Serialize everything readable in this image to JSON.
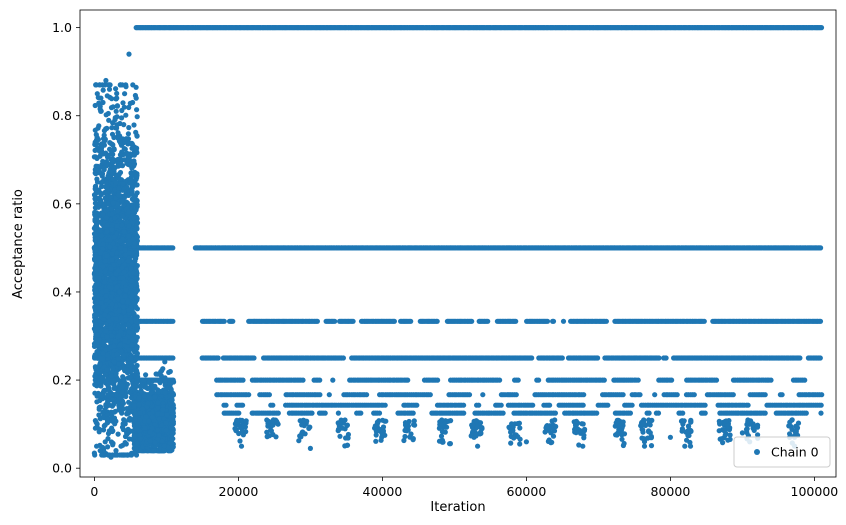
{
  "chart_data": {
    "type": "scatter",
    "xlabel": "Iteration",
    "ylabel": "Acceptance ratio",
    "xlim": [
      -2000,
      103000
    ],
    "ylim": [
      -0.02,
      1.04
    ],
    "xticks": [
      0,
      20000,
      40000,
      60000,
      80000,
      100000
    ],
    "xtick_labels": [
      "0",
      "20000",
      "40000",
      "60000",
      "80000",
      "100000"
    ],
    "yticks": [
      0.0,
      0.2,
      0.4,
      0.6,
      0.8,
      1.0
    ],
    "ytick_labels": [
      "0.0",
      "0.2",
      "0.4",
      "0.6",
      "0.8",
      "1.0"
    ],
    "grid": false,
    "legend": {
      "placement": "bottom-right",
      "entries": [
        "Chain 0"
      ]
    },
    "series": [
      {
        "name": "Chain 0",
        "color": "#1f77b4",
        "marker": "circle",
        "description_ranges": [
          {
            "x_range": [
              0,
              6000
            ],
            "y_range": [
              0.03,
              0.87
            ]
          },
          {
            "x_range": [
              5500,
              11000
            ],
            "y_range": [
              0.04,
              0.25
            ]
          }
        ],
        "levels": [
          {
            "y": 1.0,
            "x_range": [
              5800,
              101000
            ],
            "continuous": true
          },
          {
            "y": 0.5,
            "x_range": [
              0,
              101000
            ],
            "continuous": true,
            "gap": [
              11000,
              14000
            ]
          },
          {
            "y": 0.3333,
            "x_range": [
              0,
              101000
            ],
            "segments": [
              [
                0,
                11000
              ],
              [
                15000,
                101000
              ]
            ]
          },
          {
            "y": 0.25,
            "x_range": [
              0,
              101000
            ],
            "segments": [
              [
                0,
                11000
              ],
              [
                15000,
                101000
              ]
            ]
          },
          {
            "y": 0.2,
            "x_range": [
              5500,
              101000
            ],
            "segments": [
              [
                5500,
                11000
              ],
              [
                17000,
                101000
              ]
            ]
          },
          {
            "y": 0.1667,
            "x_range": [
              5500,
              101000
            ],
            "segments": [
              [
                5500,
                11000
              ],
              [
                17000,
                101000
              ]
            ]
          },
          {
            "y": 0.1429,
            "x_range": [
              5500,
              101000
            ],
            "segments": [
              [
                5500,
                11000
              ],
              [
                18000,
                101000
              ]
            ]
          },
          {
            "y": 0.125,
            "x_range": [
              5500,
              101000
            ],
            "segments": [
              [
                5500,
                11000
              ],
              [
                18000,
                101000
              ]
            ]
          }
        ],
        "sample_points": [
          [
            400,
            0.85
          ],
          [
            900,
            0.84
          ],
          [
            1200,
            0.83
          ],
          [
            1600,
            0.88
          ],
          [
            2100,
            0.86
          ],
          [
            2600,
            0.82
          ],
          [
            3100,
            0.84
          ],
          [
            3600,
            0.87
          ],
          [
            4200,
            0.85
          ],
          [
            4800,
            0.94
          ],
          [
            5300,
            0.83
          ],
          [
            5800,
            0.84
          ],
          [
            300,
            0.05
          ],
          [
            800,
            0.04
          ],
          [
            1500,
            0.06
          ],
          [
            2300,
            0.025
          ],
          [
            3000,
            0.04
          ],
          [
            3700,
            0.05
          ],
          [
            4500,
            0.03
          ],
          [
            5500,
            0.035
          ],
          [
            30000,
            0.045
          ],
          [
            40000,
            0.075
          ],
          [
            60000,
            0.06
          ],
          [
            80000,
            0.07
          ],
          [
            90000,
            0.08
          ]
        ]
      }
    ]
  }
}
